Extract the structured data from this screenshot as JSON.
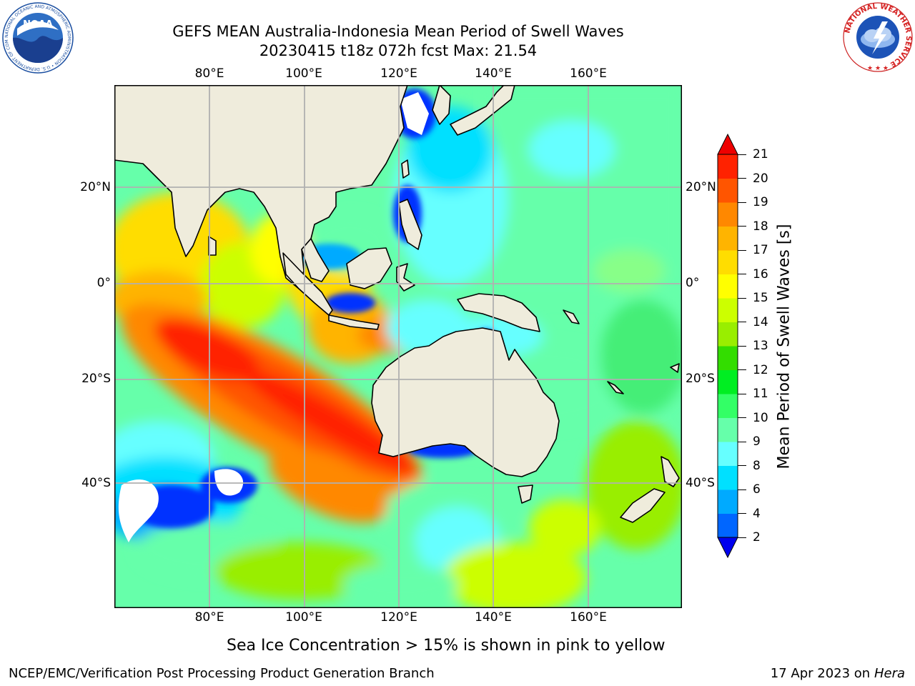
{
  "header": {
    "title_line1": "GEFS MEAN Australia-Indonesia Mean Period of Swell Waves",
    "title_line2": "20230415 t18z 072h fcst   Max: 21.54"
  },
  "logos": {
    "left": "NOAA",
    "left_ring": "NATIONAL OCEANIC AND ATMOSPHERIC ADMINISTRATION • U.S. DEPARTMENT OF COMMERCE",
    "right_ring": "NATIONAL WEATHER SERVICE"
  },
  "map": {
    "lon_ticks": [
      "80°E",
      "100°E",
      "120°E",
      "140°E",
      "160°E"
    ],
    "lat_ticks": [
      "20°N",
      "0°",
      "20°S",
      "40°S"
    ],
    "colors": {
      "land": "#efecdc",
      "grid": "#b0b0b0"
    }
  },
  "colorbar": {
    "label": "Mean Period of Swell Waves [s]",
    "ticks": [
      "2",
      "4",
      "6",
      "8",
      "9",
      "10",
      "11",
      "12",
      "13",
      "14",
      "15",
      "16",
      "17",
      "18",
      "19",
      "20",
      "21"
    ],
    "colors": [
      "#0033ff",
      "#0066ff",
      "#00aaff",
      "#00e0ff",
      "#66ffff",
      "#66ffaa",
      "#33ff66",
      "#00ee22",
      "#33dd00",
      "#99ee00",
      "#ccff00",
      "#ffff00",
      "#ffdd00",
      "#ffb400",
      "#ff8800",
      "#ff5500",
      "#ff2200",
      "#ee0000"
    ],
    "under_color": "#0000ee",
    "over_color": "#ee0000"
  },
  "note": "Sea Ice Concentration > 15% is shown in pink to yellow",
  "footer": {
    "left": "NCEP/EMC/Verification Post Processing Product Generation Branch",
    "right_date": "17 Apr 2023 on ",
    "right_host": "Hera"
  }
}
